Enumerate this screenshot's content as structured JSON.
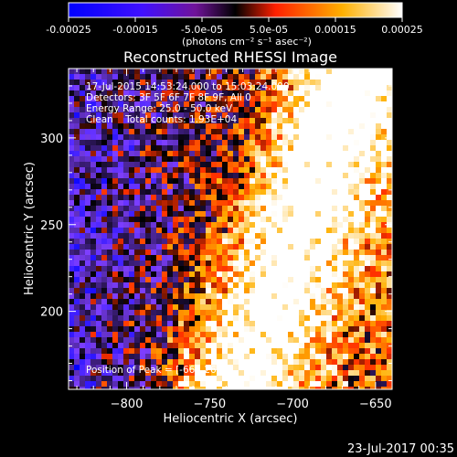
{
  "colorbar": {
    "tick_labels": [
      "-0.00025",
      "-0.00015",
      "-5.0e-05",
      "5.0e-05",
      "0.00015",
      "0.00025"
    ],
    "tick_values": [
      -0.00025,
      -0.00015,
      -5e-05,
      5e-05,
      0.00015,
      0.00025
    ],
    "range": [
      -0.00025,
      0.00025
    ],
    "units_label": "(photons cm⁻² s⁻¹ asec⁻²)"
  },
  "chart_data": {
    "type": "heatmap",
    "title": "Reconstructed RHESSI Image",
    "xlabel": "Heliocentric X (arcsec)",
    "ylabel": "Heliocentric Y (arcsec)",
    "xlim": [
      -835,
      -640
    ],
    "ylim": [
      155,
      340
    ],
    "x_ticks": [
      -800,
      -750,
      -700,
      -650
    ],
    "x_tick_labels": [
      "−800",
      "−750",
      "−700",
      "−650"
    ],
    "y_ticks": [
      200,
      250,
      300
    ],
    "y_tick_labels": [
      "200",
      "250",
      "300"
    ],
    "annotations": [
      "17-Jul-2015 14:53:24.000 to 15:03:24.000",
      "Detectors: 3F 5F 6F 7F 8F 9F, All 0",
      "Energy Range: 25.0 - 50.0 keV",
      "Clean    Total counts: 1.93E+04"
    ],
    "peak_label": "Position of Peak = [-662,266]",
    "peak_position": [
      -662,
      266
    ],
    "colormap": [
      "#0000ff",
      "#7f3fff",
      "#000000",
      "#ff3000",
      "#ffb000",
      "#ffffff"
    ]
  },
  "footer": {
    "timestamp": "23-Jul-2017 00:35"
  }
}
